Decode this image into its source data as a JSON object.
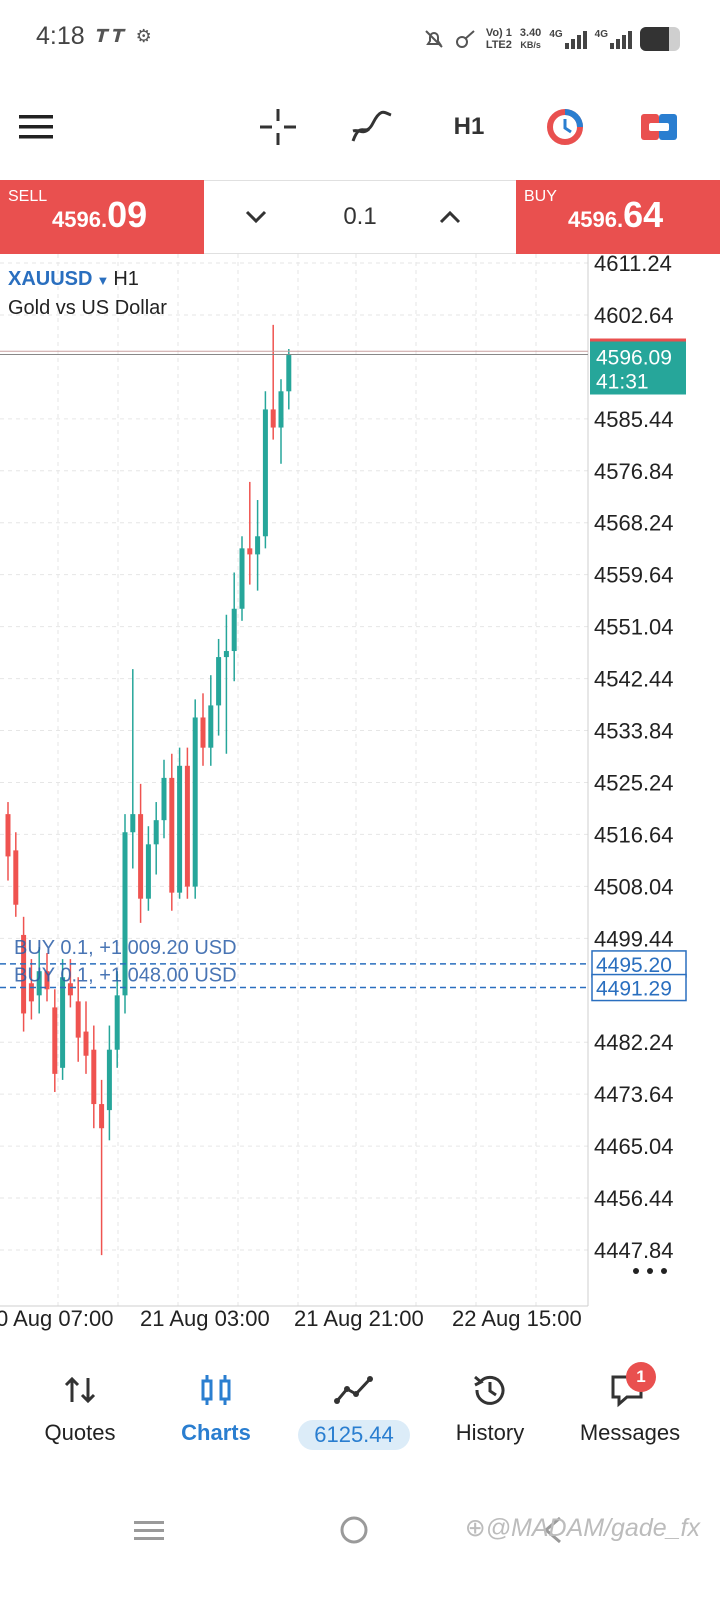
{
  "status_bar": {
    "time": "4:18",
    "left_icons": [
      "tt-icon",
      "settings-icon"
    ],
    "volte": "Vo) 1",
    "lte": "LTE2",
    "speed_value": "3.40",
    "speed_unit": "KB/s",
    "net1": "4G",
    "net2": "4G",
    "battery_level": 0.72
  },
  "toolbar": {
    "timeframe": "H1"
  },
  "trade": {
    "sell_label": "SELL",
    "sell_price_main": "4596.",
    "sell_price_big": "09",
    "buy_label": "BUY",
    "buy_price_main": "4596.",
    "buy_price_big": "64",
    "lot": "0.1",
    "sell_color": "#e9504f",
    "buy_color": "#e9504f"
  },
  "symbol": {
    "name": "XAUUSD",
    "timeframe": "H1",
    "description": "Gold vs US Dollar"
  },
  "chart_data": {
    "type": "candlestick",
    "symbol": "XAUUSD",
    "timeframe": "H1",
    "price_ticks": [
      "4611.24",
      "4602.64",
      "4585.44",
      "4576.84",
      "4568.24",
      "4559.64",
      "4551.04",
      "4542.44",
      "4533.84",
      "4525.24",
      "4516.64",
      "4508.04",
      "4499.44",
      "4482.24",
      "4473.64",
      "4465.04",
      "4456.44",
      "4447.84"
    ],
    "ylim": [
      4442,
      4615
    ],
    "time_ticks": [
      "0 Aug 07:00",
      "21 Aug 03:00",
      "21 Aug 21:00",
      "22 Aug 15:00"
    ],
    "current_price": "4596.09",
    "countdown": "41:31",
    "bid": 4596.09,
    "ask": 4596.64,
    "orders": [
      {
        "label": "BUY 0.1,",
        "profit": "+1 009.20 USD",
        "price": "4495.20"
      },
      {
        "label": "BUY 0.1,",
        "profit": "+1 048.00 USD",
        "price": "4491.29"
      }
    ],
    "up_color": "#26a69a",
    "down_color": "#ef5350",
    "candles": [
      {
        "o": 4520,
        "h": 4522,
        "l": 4509,
        "c": 4513
      },
      {
        "o": 4514,
        "h": 4517,
        "l": 4503,
        "c": 4505
      },
      {
        "o": 4500,
        "h": 4503,
        "l": 4484,
        "c": 4487
      },
      {
        "o": 4492,
        "h": 4496,
        "l": 4486,
        "c": 4489
      },
      {
        "o": 4490,
        "h": 4498,
        "l": 4487,
        "c": 4494
      },
      {
        "o": 4494,
        "h": 4497,
        "l": 4489,
        "c": 4491
      },
      {
        "o": 4488,
        "h": 4491,
        "l": 4474,
        "c": 4477
      },
      {
        "o": 4478,
        "h": 4496,
        "l": 4476,
        "c": 4493
      },
      {
        "o": 4492,
        "h": 4496,
        "l": 4488,
        "c": 4490
      },
      {
        "o": 4489,
        "h": 4493,
        "l": 4479,
        "c": 4483
      },
      {
        "o": 4484,
        "h": 4489,
        "l": 4477,
        "c": 4480
      },
      {
        "o": 4481,
        "h": 4485,
        "l": 4468,
        "c": 4472
      },
      {
        "o": 4472,
        "h": 4476,
        "l": 4447,
        "c": 4468
      },
      {
        "o": 4471,
        "h": 4485,
        "l": 4466,
        "c": 4481
      },
      {
        "o": 4481,
        "h": 4494,
        "l": 4478,
        "c": 4490
      },
      {
        "o": 4490,
        "h": 4520,
        "l": 4487,
        "c": 4517
      },
      {
        "o": 4517,
        "h": 4544,
        "l": 4511,
        "c": 4520
      },
      {
        "o": 4520,
        "h": 4525,
        "l": 4502,
        "c": 4506
      },
      {
        "o": 4506,
        "h": 4518,
        "l": 4504,
        "c": 4515
      },
      {
        "o": 4515,
        "h": 4522,
        "l": 4510,
        "c": 4519
      },
      {
        "o": 4519,
        "h": 4529,
        "l": 4516,
        "c": 4526
      },
      {
        "o": 4526,
        "h": 4530,
        "l": 4504,
        "c": 4507
      },
      {
        "o": 4507,
        "h": 4531,
        "l": 4506,
        "c": 4528
      },
      {
        "o": 4528,
        "h": 4531,
        "l": 4506,
        "c": 4508
      },
      {
        "o": 4508,
        "h": 4539,
        "l": 4506,
        "c": 4536
      },
      {
        "o": 4536,
        "h": 4540,
        "l": 4528,
        "c": 4531
      },
      {
        "o": 4531,
        "h": 4543,
        "l": 4528,
        "c": 4538
      },
      {
        "o": 4538,
        "h": 4549,
        "l": 4533,
        "c": 4546
      },
      {
        "o": 4546,
        "h": 4553,
        "l": 4530,
        "c": 4547
      },
      {
        "o": 4547,
        "h": 4560,
        "l": 4542,
        "c": 4554
      },
      {
        "o": 4554,
        "h": 4566,
        "l": 4552,
        "c": 4564
      },
      {
        "o": 4564,
        "h": 4575,
        "l": 4558,
        "c": 4563
      },
      {
        "o": 4563,
        "h": 4572,
        "l": 4557,
        "c": 4566
      },
      {
        "o": 4566,
        "h": 4590,
        "l": 4564,
        "c": 4587
      },
      {
        "o": 4587,
        "h": 4601,
        "l": 4582,
        "c": 4584
      },
      {
        "o": 4584,
        "h": 4592,
        "l": 4578,
        "c": 4590
      },
      {
        "o": 4590,
        "h": 4597,
        "l": 4587,
        "c": 4596
      }
    ]
  },
  "bottom_nav": {
    "items": [
      {
        "label": "Quotes",
        "icon": "quotes-icon"
      },
      {
        "label": "Charts",
        "icon": "charts-icon"
      },
      {
        "label": "6125.44",
        "icon": "trade-icon"
      },
      {
        "label": "History",
        "icon": "history-icon"
      },
      {
        "label": "Messages",
        "icon": "messages-icon",
        "badge": "1"
      }
    ]
  },
  "watermark": "⊕@MADAM/gade_fx"
}
